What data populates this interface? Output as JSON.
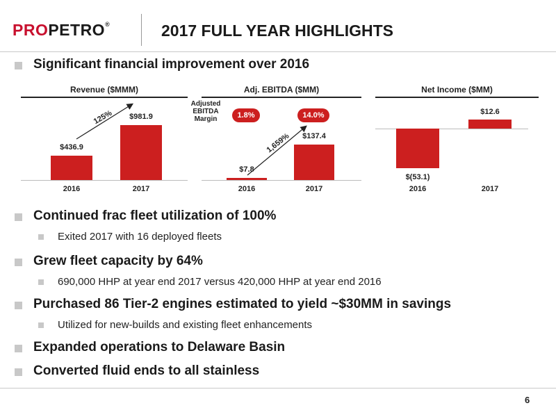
{
  "logo": {
    "text_red_1": "PRO",
    "text_dark": "PETRO",
    "trademark": "®"
  },
  "title": "2017 FULL YEAR HIGHLIGHTS",
  "bullet_top": "Significant financial improvement over 2016",
  "charts": {
    "revenue": {
      "title": "Revenue ($MMM)",
      "growth": "125%"
    },
    "ebitda": {
      "title": "Adj. EBITDA ($MM)",
      "growth": "1,659%",
      "margin_label_line1": "Adjusted",
      "margin_label_line2": "EBITDA",
      "margin_label_line3": "Margin",
      "margin_2016": "1.8%",
      "margin_2017": "14.0%"
    },
    "net_income": {
      "title": "Net Income ($MM)"
    }
  },
  "chart_data": [
    {
      "type": "bar",
      "title": "Revenue ($MMM)",
      "categories": [
        "2016",
        "2017"
      ],
      "values": [
        436.9,
        981.9
      ],
      "labels": [
        "$436.9",
        "$981.9"
      ],
      "annotations": [
        "125%"
      ]
    },
    {
      "type": "bar",
      "title": "Adj. EBITDA ($MM)",
      "categories": [
        "2016",
        "2017"
      ],
      "values": [
        7.8,
        137.4
      ],
      "labels": [
        "$7.8",
        "$137.4"
      ],
      "annotations": [
        "1,659%",
        "Adjusted EBITDA Margin",
        "1.8%",
        "14.0%"
      ]
    },
    {
      "type": "bar",
      "title": "Net Income ($MM)",
      "categories": [
        "2016",
        "2017"
      ],
      "values": [
        -53.1,
        12.6
      ],
      "labels": [
        "$(53.1)",
        "$12.6"
      ]
    }
  ],
  "bullets": [
    {
      "text": "Continued frac fleet utilization of 100%",
      "sub": "Exited 2017 with 16 deployed fleets"
    },
    {
      "text": "Grew fleet capacity by 64%",
      "sub": "690,000 HHP at year end 2017 versus 420,000 HHP at year end 2016"
    },
    {
      "text": "Purchased 86 Tier-2 engines estimated to yield ~$30MM in savings",
      "sub": "Utilized for new-builds and existing fleet enhancements"
    },
    {
      "text": "Expanded operations to Delaware Basin"
    },
    {
      "text": "Converted fluid ends to all stainless"
    }
  ],
  "page_number": "6"
}
